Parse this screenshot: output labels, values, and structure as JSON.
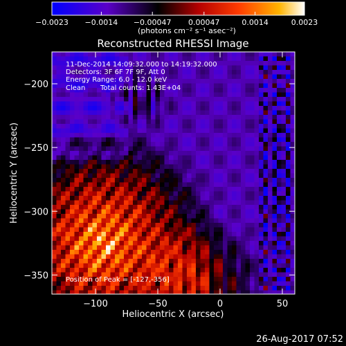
{
  "chart_data": {
    "type": "heatmap",
    "title": "Reconstructed RHESSI Image",
    "xlabel": "Heliocentric X (arcsec)",
    "ylabel": "Heliocentric Y (arcsec)",
    "xlim": [
      -135,
      60
    ],
    "ylim": [
      -365,
      -175
    ],
    "x_ticks": [
      -100,
      -50,
      0,
      50
    ],
    "y_ticks": [
      -200,
      -250,
      -300,
      -350
    ],
    "x_tick_labels": [
      "−100",
      "−50",
      "0",
      "50"
    ],
    "y_tick_labels": [
      "−200",
      "−250",
      "−300",
      "−350"
    ],
    "colorbar": {
      "range": [
        -0.0023,
        0.0023
      ],
      "ticks": [
        -0.0023,
        -0.0014,
        -0.00047,
        0.00047,
        0.0014,
        0.0023
      ],
      "tick_labels": [
        "−0.0023",
        "−0.0014",
        "−0.00047",
        "0.00047",
        "0.0014",
        "0.0023"
      ],
      "unit_text": "(photons cm⁻² s⁻¹ asec⁻²)",
      "colors": [
        "#0000ff",
        "#5a00c8",
        "#000000",
        "#b40000",
        "#ff3c00",
        "#ffb400",
        "#ffffff"
      ]
    },
    "annotations": {
      "time_range": "11-Dec-2014 14:09:32.000 to 14:19:32.000",
      "detectors": "Detectors: 3F 6F 7F 9F, Att 0",
      "energy_range": "Energy Range: 6.0 - 12.0 keV",
      "algorithm": "Clean",
      "total_counts": "Total counts: 1.43E+04",
      "peak": "Position of Peak = [-127,-356]"
    },
    "peak_position": [
      -127,
      -356
    ],
    "grid": false,
    "legend": "colorbar top"
  },
  "footer": {
    "timestamp": "26-Aug-2017 07:52"
  }
}
